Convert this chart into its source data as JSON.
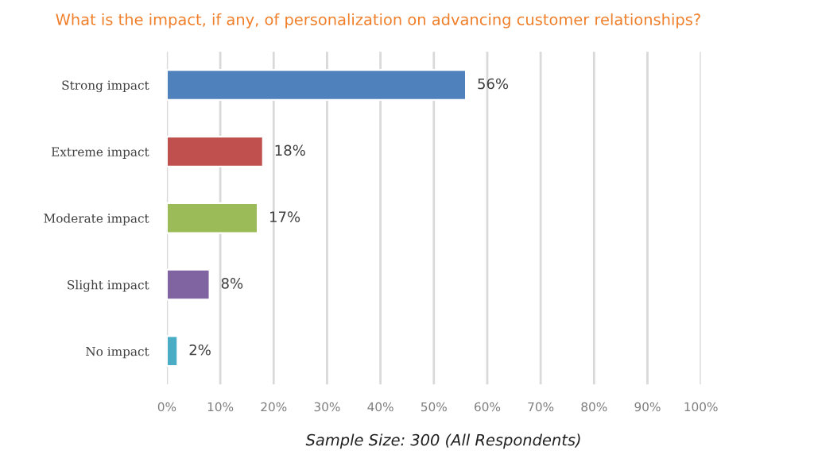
{
  "chart_data": {
    "type": "bar",
    "orientation": "horizontal",
    "title": "What is the impact, if any, of personalization on advancing customer relationships?",
    "categories": [
      "Strong impact",
      "Extreme impact",
      "Moderate impact",
      "Slight impact",
      "No impact"
    ],
    "values": [
      56,
      18,
      17,
      8,
      2
    ],
    "colors": [
      "#4f81bd",
      "#c0504d",
      "#9bbb59",
      "#8064a2",
      "#4bacc6"
    ],
    "value_labels": [
      "56%",
      "18%",
      "17%",
      "8%",
      "2%"
    ],
    "xlim": [
      0,
      100
    ],
    "xticks": [
      {
        "value": 0,
        "label": "0%"
      },
      {
        "value": 10,
        "label": "10%"
      },
      {
        "value": 20,
        "label": "20%"
      },
      {
        "value": 30,
        "label": "30%"
      },
      {
        "value": 40,
        "label": "40%"
      },
      {
        "value": 50,
        "label": "50%"
      },
      {
        "value": 60,
        "label": "60%"
      },
      {
        "value": 70,
        "label": "70%"
      },
      {
        "value": 80,
        "label": "80%"
      },
      {
        "value": 90,
        "label": "90%"
      },
      {
        "value": 100,
        "label": "100%"
      }
    ],
    "grid": "x",
    "legend": false,
    "annotations": [
      "Sample Size: 300 (All Respondents)"
    ]
  }
}
